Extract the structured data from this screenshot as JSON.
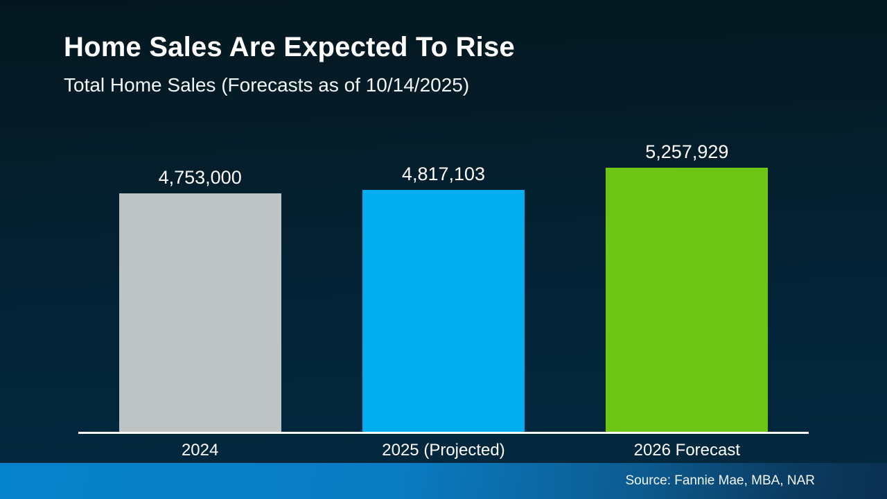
{
  "slide": {
    "title": "Home Sales Are Expected To Rise",
    "subtitle": "Total Home Sales (Forecasts as of 10/14/2025)",
    "source": "Source: Fannie Mae, MBA, NAR"
  },
  "colors": {
    "background_top": "#04171f",
    "background_bottom": "#032a40",
    "axis_line": "#ffffff",
    "text": "#ffffff",
    "footer_gradient_left": "#0583cb",
    "footer_gradient_right": "#0a3051",
    "bar_2024": "#bec3c4",
    "bar_2025_projected": "#00aeef",
    "bar_2026_forecast": "#6cc613"
  },
  "chart_data": {
    "type": "bar",
    "title": "Home Sales Are Expected To Rise",
    "subtitle": "Total Home Sales (Forecasts as of 10/14/2025)",
    "categories": [
      "2024",
      "2025 (Projected)",
      "2026 Forecast"
    ],
    "values": [
      4753000,
      4817103,
      5257929
    ],
    "value_labels": [
      "4,753,000",
      "4,817,103",
      "5,257,929"
    ],
    "bar_colors": [
      "#bec3c4",
      "#00aeef",
      "#6cc613"
    ],
    "xlabel": "",
    "ylabel": "",
    "ylim": [
      0,
      5257929
    ],
    "grid": false,
    "legend": false,
    "y_axis_visible": false,
    "source": "Source: Fannie Mae, MBA, NAR"
  }
}
